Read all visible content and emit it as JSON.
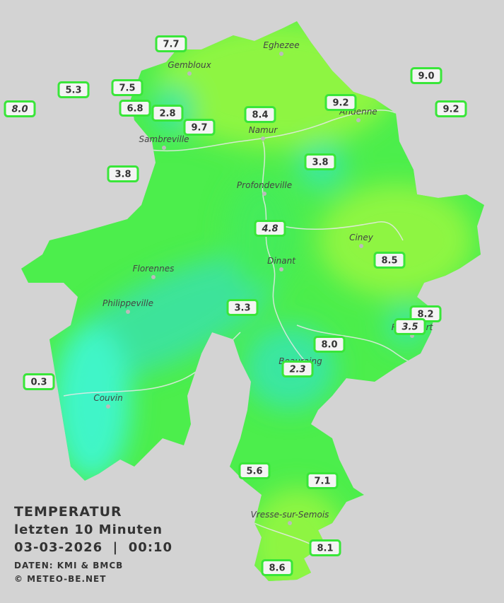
{
  "map": {
    "title": "TEMPERATUR",
    "subtitle_lines": [
      "letzten 10 Minuten",
      "03-03-2026  |  00:10"
    ],
    "source": "DATEN: KMI & BMCB",
    "copyright": "© METEO-BE.NET",
    "places": [
      "Eghezee",
      "Gembloux",
      "Andenne",
      "Namur",
      "Sambreville",
      "Profondeville",
      "Ciney",
      "Dinant",
      "Florennes",
      "Philippeville",
      "Couvin",
      "Beauraing",
      "Vresse-sur-Semois",
      "Rochefort"
    ],
    "stations": [
      {
        "reading": "7.7"
      },
      {
        "reading": "5.3"
      },
      {
        "reading": "7.5"
      },
      {
        "reading": "8.0",
        "style": "italic"
      },
      {
        "reading": "6.8"
      },
      {
        "reading": "2.8"
      },
      {
        "reading": "9.7"
      },
      {
        "reading": "8.4"
      },
      {
        "reading": "9.2"
      },
      {
        "reading": "9.0"
      },
      {
        "reading": "9.2"
      },
      {
        "reading": "3.8"
      },
      {
        "reading": "3.8"
      },
      {
        "reading": "4.8",
        "style": "italic"
      },
      {
        "reading": "8.5"
      },
      {
        "reading": "3.3"
      },
      {
        "reading": "8.2"
      },
      {
        "reading": "3.5",
        "style": "italic"
      },
      {
        "reading": "8.0"
      },
      {
        "reading": "2.3",
        "style": "italic"
      },
      {
        "reading": "0.3"
      },
      {
        "reading": "5.6"
      },
      {
        "reading": "7.1"
      },
      {
        "reading": "8.1"
      },
      {
        "reading": "8.6"
      }
    ]
  }
}
